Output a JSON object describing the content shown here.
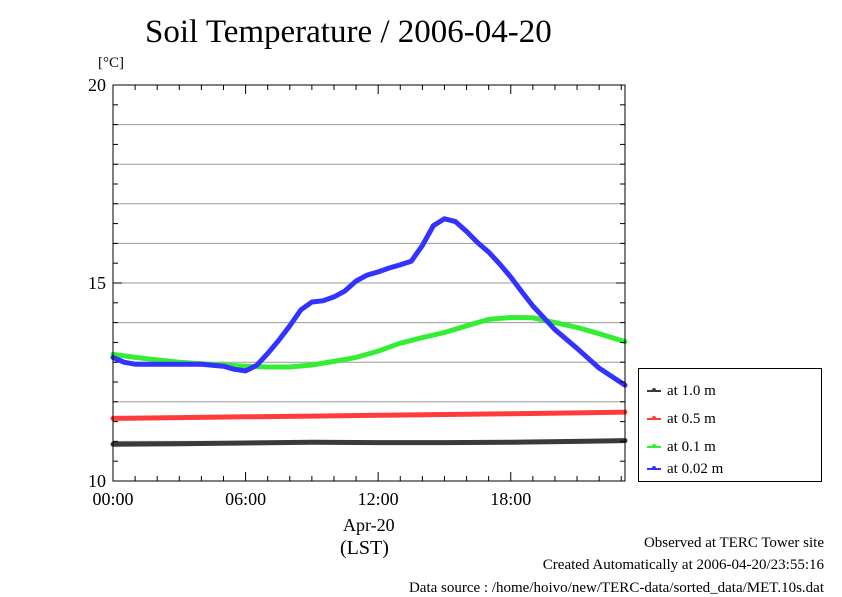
{
  "page_title": "Soil Temperature / 2006-04-20",
  "unit_label": "[°C]",
  "date_label": "Apr-20",
  "timezone_label": "(LST)",
  "footer": {
    "line1": "Observed at TERC Tower site",
    "line2": "Created Automatically at 2006-04-20/23:55:16",
    "line3": "Data source : /home/hoivo/new/TERC-data/sorted_data/MET.10s.dat"
  },
  "chart_data": {
    "type": "line",
    "title": "Soil Temperature / 2006-04-20",
    "xlabel": "(LST)",
    "ylabel": "[°C]",
    "x_ticks": [
      "00:00",
      "06:00",
      "12:00",
      "18:00"
    ],
    "x_tick_hours": [
      0,
      6,
      12,
      18
    ],
    "xlim": [
      0,
      23.17
    ],
    "y_ticks": [
      "10",
      "15",
      "20"
    ],
    "y_tick_values": [
      10,
      15,
      20
    ],
    "ylim": [
      10,
      20
    ],
    "grid": true,
    "legend_position": "right",
    "series": [
      {
        "name": "at 1.0 m",
        "color": "#3a3a3a",
        "x": [
          0,
          3,
          6,
          9,
          12,
          15,
          18,
          21,
          23.17
        ],
        "values": [
          10.93,
          10.94,
          10.96,
          10.98,
          10.97,
          10.97,
          10.98,
          11.0,
          11.02
        ]
      },
      {
        "name": "at 0.5 m",
        "color": "#ff3b3b",
        "x": [
          0,
          3,
          6,
          9,
          12,
          15,
          18,
          21,
          23.17
        ],
        "values": [
          11.58,
          11.6,
          11.62,
          11.64,
          11.66,
          11.68,
          11.7,
          11.72,
          11.74
        ]
      },
      {
        "name": "at 0.1 m",
        "color": "#33ee33",
        "x": [
          0,
          1,
          2,
          3,
          4,
          5,
          6,
          7,
          8,
          9,
          10,
          11,
          12,
          13,
          14,
          15,
          16,
          17,
          18,
          19,
          20,
          21,
          22,
          23.17
        ],
        "values": [
          13.2,
          13.12,
          13.06,
          13.0,
          12.96,
          12.93,
          12.9,
          12.88,
          12.88,
          12.93,
          13.02,
          13.12,
          13.28,
          13.48,
          13.62,
          13.75,
          13.92,
          14.08,
          14.13,
          14.12,
          14.0,
          13.88,
          13.72,
          13.52
        ]
      },
      {
        "name": "at 0.02 m",
        "color": "#3333ff",
        "x": [
          0,
          0.5,
          1,
          2,
          3,
          4,
          5,
          5.5,
          6,
          6.5,
          7,
          7.5,
          8,
          8.5,
          9,
          9.5,
          10,
          10.5,
          11,
          11.5,
          12,
          12.5,
          13,
          13.5,
          14,
          14.5,
          15,
          15.5,
          16,
          16.5,
          17,
          17.5,
          18,
          18.5,
          19,
          19.5,
          20,
          21,
          22,
          23.17
        ],
        "values": [
          13.12,
          13.0,
          12.95,
          12.95,
          12.95,
          12.95,
          12.9,
          12.82,
          12.78,
          12.92,
          13.22,
          13.55,
          13.92,
          14.32,
          14.52,
          14.55,
          14.65,
          14.8,
          15.05,
          15.2,
          15.28,
          15.38,
          15.46,
          15.55,
          15.95,
          16.45,
          16.62,
          16.55,
          16.3,
          16.02,
          15.78,
          15.48,
          15.15,
          14.78,
          14.42,
          14.12,
          13.82,
          13.35,
          12.85,
          12.42
        ]
      }
    ]
  }
}
